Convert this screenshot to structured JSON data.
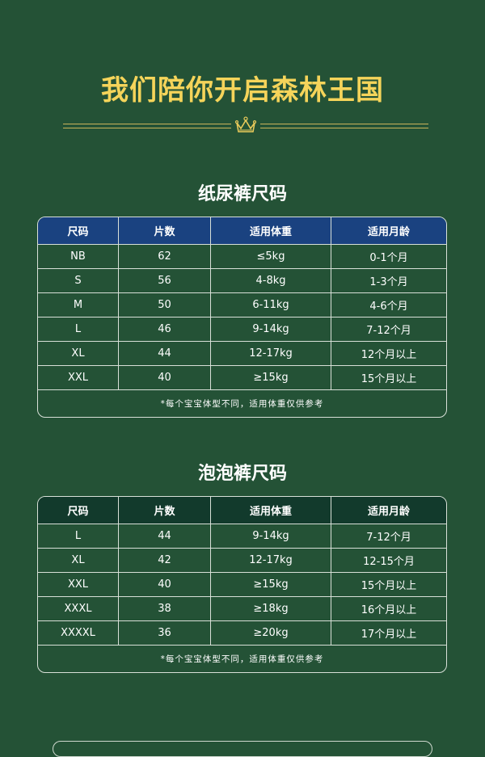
{
  "title": "我们陪你开启森林王国",
  "colors": {
    "background": "#245236",
    "title": "#f5d45a",
    "diaper_header": "#1a4280",
    "pants_header": "#123a2c"
  },
  "decor_icon": "crown-icon",
  "diaper": {
    "heading": "纸尿裤尺码",
    "columns": [
      "尺码",
      "片数",
      "适用体重",
      "适用月龄"
    ],
    "rows": [
      [
        "NB",
        "62",
        "≤5kg",
        "0-1个月"
      ],
      [
        "S",
        "56",
        "4-8kg",
        "1-3个月"
      ],
      [
        "M",
        "50",
        "6-11kg",
        "4-6个月"
      ],
      [
        "L",
        "46",
        "9-14kg",
        "7-12个月"
      ],
      [
        "XL",
        "44",
        "12-17kg",
        "12个月以上"
      ],
      [
        "XXL",
        "40",
        "≥15kg",
        "15个月以上"
      ]
    ],
    "note": "*每个宝宝体型不同，适用体重仅供参考"
  },
  "pants": {
    "heading": "泡泡裤尺码",
    "columns": [
      "尺码",
      "片数",
      "适用体重",
      "适用月龄"
    ],
    "rows": [
      [
        "L",
        "44",
        "9-14kg",
        "7-12个月"
      ],
      [
        "XL",
        "42",
        "12-17kg",
        "12-15个月"
      ],
      [
        "XXL",
        "40",
        "≥15kg",
        "15个月以上"
      ],
      [
        "XXXL",
        "38",
        "≥18kg",
        "16个月以上"
      ],
      [
        "XXXXL",
        "36",
        "≥20kg",
        "17个月以上"
      ]
    ],
    "note": "*每个宝宝体型不同，适用体重仅供参考"
  }
}
